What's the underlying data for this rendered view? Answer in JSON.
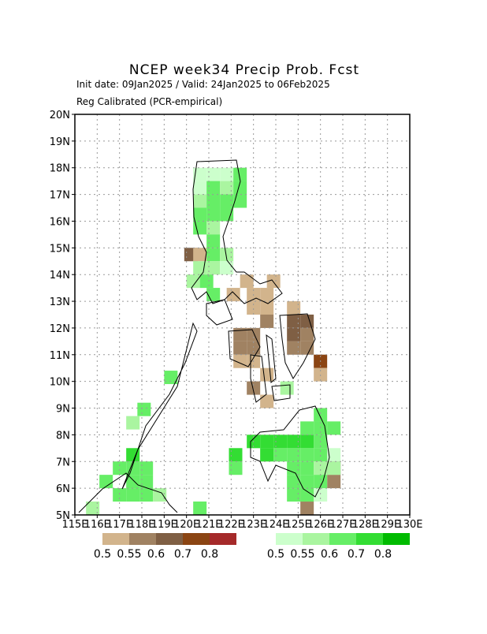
{
  "chart_data": {
    "type": "grid-map",
    "title": "NCEP week34 Precip Prob. Fcst",
    "subtitle": "Init date: 09Jan2025 / Valid: 24Jan2025 to 06Feb2025",
    "method": "Reg Calibrated (PCR-empirical)",
    "xlim": [
      115,
      130
    ],
    "ylim": [
      5,
      20
    ],
    "xticks": [
      {
        "value": 115,
        "label": "115E"
      },
      {
        "value": 116,
        "label": "116E"
      },
      {
        "value": 117,
        "label": "117E"
      },
      {
        "value": 118,
        "label": "118E"
      },
      {
        "value": 119,
        "label": "119E"
      },
      {
        "value": 120,
        "label": "120E"
      },
      {
        "value": 121,
        "label": "121E"
      },
      {
        "value": 122,
        "label": "122E"
      },
      {
        "value": 123,
        "label": "123E"
      },
      {
        "value": 124,
        "label": "124E"
      },
      {
        "value": 125,
        "label": "125E"
      },
      {
        "value": 126,
        "label": "126E"
      },
      {
        "value": 127,
        "label": "127E"
      },
      {
        "value": 128,
        "label": "128E"
      },
      {
        "value": 129,
        "label": "129E"
      },
      {
        "value": 130,
        "label": "130E"
      }
    ],
    "yticks": [
      {
        "value": 5,
        "label": "5N"
      },
      {
        "value": 6,
        "label": "6N"
      },
      {
        "value": 7,
        "label": "7N"
      },
      {
        "value": 8,
        "label": "8N"
      },
      {
        "value": 9,
        "label": "9N"
      },
      {
        "value": 10,
        "label": "10N"
      },
      {
        "value": 11,
        "label": "11N"
      },
      {
        "value": 12,
        "label": "12N"
      },
      {
        "value": 13,
        "label": "13N"
      },
      {
        "value": 14,
        "label": "14N"
      },
      {
        "value": 15,
        "label": "15N"
      },
      {
        "value": 16,
        "label": "16N"
      },
      {
        "value": 17,
        "label": "17N"
      },
      {
        "value": 18,
        "label": "18N"
      },
      {
        "value": 19,
        "label": "19N"
      },
      {
        "value": 20,
        "label": "20N"
      }
    ],
    "grid": true,
    "below": {
      "colors": [
        "#d2b48c",
        "#a08262",
        "#7f5f44",
        "#8b4513",
        "#a52a2a"
      ],
      "labels": [
        0.5,
        0.55,
        0.6,
        0.7,
        0.8
      ],
      "cells": [
        [
          119.9,
          14.5,
          2
        ],
        [
          120.3,
          14.5,
          0
        ],
        [
          122.4,
          13.5,
          0
        ],
        [
          122.7,
          13.0,
          0
        ],
        [
          121.8,
          13.0,
          0
        ],
        [
          123.3,
          13.0,
          0
        ],
        [
          123.6,
          13.5,
          0
        ],
        [
          122.7,
          12.5,
          0
        ],
        [
          123.3,
          12.5,
          0
        ],
        [
          122.7,
          11.5,
          1
        ],
        [
          122.1,
          11.5,
          1
        ],
        [
          122.1,
          11.0,
          1
        ],
        [
          122.1,
          10.5,
          0
        ],
        [
          122.7,
          11.0,
          1
        ],
        [
          122.7,
          10.5,
          0
        ],
        [
          123.3,
          10.0,
          0
        ],
        [
          122.7,
          9.5,
          1
        ],
        [
          123.3,
          9.0,
          0
        ],
        [
          124.5,
          12.0,
          2
        ],
        [
          125.1,
          12.0,
          2
        ],
        [
          124.5,
          11.5,
          2
        ],
        [
          125.1,
          11.5,
          1
        ],
        [
          124.5,
          11.0,
          1
        ],
        [
          125.1,
          11.0,
          1
        ],
        [
          124.5,
          12.5,
          0
        ],
        [
          125.7,
          10.5,
          3
        ],
        [
          125.7,
          10.0,
          0
        ],
        [
          123.3,
          12.0,
          1
        ],
        [
          126.3,
          6.5,
          2
        ],
        [
          126.3,
          6.0,
          1
        ],
        [
          125.1,
          5.0,
          1
        ],
        [
          125.1,
          5.5,
          0
        ]
      ]
    },
    "above": {
      "colors": [
        "#ccffcc",
        "#aaf5a0",
        "#66ee66",
        "#33dd33",
        "#00bb00"
      ],
      "labels": [
        0.5,
        0.55,
        0.6,
        0.7,
        0.8
      ],
      "cells": [
        [
          120.3,
          17.5,
          0
        ],
        [
          120.9,
          17.5,
          0
        ],
        [
          121.5,
          17.5,
          0
        ],
        [
          122.1,
          17.5,
          2
        ],
        [
          120.3,
          17.0,
          0
        ],
        [
          120.9,
          17.0,
          2
        ],
        [
          121.5,
          17.0,
          1
        ],
        [
          122.1,
          17.0,
          2
        ],
        [
          120.3,
          16.5,
          1
        ],
        [
          120.9,
          16.5,
          2
        ],
        [
          121.5,
          16.5,
          2
        ],
        [
          122.1,
          16.5,
          2
        ],
        [
          120.3,
          16.0,
          2
        ],
        [
          120.9,
          16.0,
          2
        ],
        [
          121.5,
          16.0,
          2
        ],
        [
          120.3,
          15.5,
          2
        ],
        [
          120.9,
          15.5,
          1
        ],
        [
          120.9,
          15.0,
          2
        ],
        [
          120.9,
          14.5,
          2
        ],
        [
          121.5,
          14.5,
          1
        ],
        [
          120.3,
          14.0,
          1
        ],
        [
          120.9,
          14.0,
          1
        ],
        [
          121.5,
          14.0,
          0
        ],
        [
          120.0,
          13.5,
          1
        ],
        [
          120.6,
          13.5,
          2
        ],
        [
          120.9,
          13.0,
          2
        ],
        [
          124.2,
          9.5,
          1
        ],
        [
          119.0,
          9.9,
          2
        ],
        [
          117.8,
          8.7,
          2
        ],
        [
          117.3,
          8.2,
          1
        ],
        [
          116.1,
          6.0,
          2
        ],
        [
          116.7,
          6.5,
          2
        ],
        [
          117.3,
          7.0,
          3
        ],
        [
          117.3,
          6.5,
          2
        ],
        [
          117.9,
          6.5,
          2
        ],
        [
          117.3,
          6.0,
          2
        ],
        [
          117.9,
          6.0,
          2
        ],
        [
          116.7,
          5.5,
          2
        ],
        [
          117.3,
          5.5,
          2
        ],
        [
          117.9,
          5.5,
          2
        ],
        [
          118.5,
          5.5,
          1
        ],
        [
          115.5,
          5.0,
          1
        ],
        [
          120.3,
          5.0,
          2
        ],
        [
          121.9,
          7.0,
          3
        ],
        [
          121.9,
          6.5,
          2
        ],
        [
          122.7,
          7.5,
          3
        ],
        [
          123.3,
          7.5,
          3
        ],
        [
          123.9,
          7.5,
          3
        ],
        [
          124.5,
          7.5,
          3
        ],
        [
          125.1,
          7.5,
          3
        ],
        [
          125.7,
          7.5,
          2
        ],
        [
          123.3,
          7.0,
          3
        ],
        [
          123.9,
          7.0,
          2
        ],
        [
          124.5,
          7.0,
          2
        ],
        [
          125.1,
          7.0,
          2
        ],
        [
          125.7,
          7.0,
          2
        ],
        [
          126.3,
          7.0,
          0
        ],
        [
          124.5,
          6.5,
          2
        ],
        [
          125.1,
          6.5,
          2
        ],
        [
          125.7,
          6.5,
          1
        ],
        [
          126.3,
          6.5,
          1
        ],
        [
          124.5,
          6.0,
          2
        ],
        [
          125.1,
          6.0,
          2
        ],
        [
          125.7,
          6.0,
          2
        ],
        [
          124.5,
          5.5,
          2
        ],
        [
          125.1,
          5.5,
          2
        ],
        [
          125.7,
          5.5,
          0
        ],
        [
          125.1,
          8.0,
          2
        ],
        [
          125.7,
          8.0,
          2
        ],
        [
          126.3,
          8.0,
          2
        ],
        [
          125.7,
          8.5,
          2
        ]
      ]
    }
  }
}
